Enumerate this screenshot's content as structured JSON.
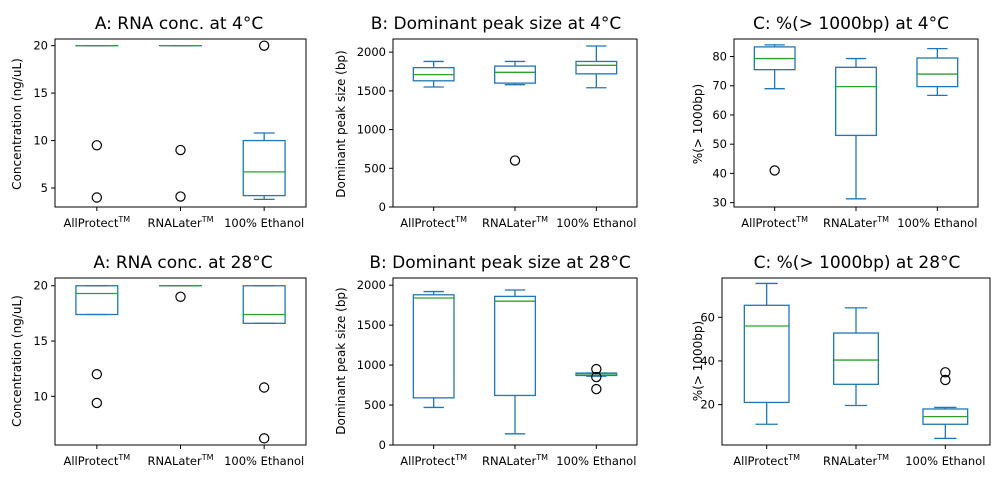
{
  "chart_data": [
    {
      "type": "box",
      "title": "A: RNA conc. at 4°C",
      "ylabel": "Concentration (ng/uL)",
      "ylim": [
        3.0,
        20.7
      ],
      "yticks": [
        5,
        10,
        15,
        20
      ],
      "categories": [
        "AllProtect",
        "RNALater",
        "100% Ethanol"
      ],
      "boxes": [
        {
          "q1": 20.0,
          "median": 20.0,
          "q3": 20.0,
          "whislo": 20.0,
          "whishi": 20.0,
          "fliers": [
            9.5,
            4.0
          ]
        },
        {
          "q1": 20.0,
          "median": 20.0,
          "q3": 20.0,
          "whislo": 20.0,
          "whishi": 20.0,
          "fliers": [
            9.0,
            4.1
          ]
        },
        {
          "q1": 4.2,
          "median": 6.7,
          "q3": 10.0,
          "whislo": 3.8,
          "whishi": 10.8,
          "fliers": [
            20.0
          ]
        }
      ]
    },
    {
      "type": "box",
      "title": "B: Dominant peak size at 4°C",
      "ylabel": "Dominant peak size (bp)",
      "ylim": [
        0,
        2170
      ],
      "yticks": [
        0,
        500,
        1000,
        1500,
        2000
      ],
      "categories": [
        "AllProtect",
        "RNALater",
        "100% Ethanol"
      ],
      "boxes": [
        {
          "q1": 1630,
          "median": 1710,
          "q3": 1800,
          "whislo": 1550,
          "whishi": 1880,
          "fliers": []
        },
        {
          "q1": 1600,
          "median": 1740,
          "q3": 1820,
          "whislo": 1580,
          "whishi": 1880,
          "fliers": [
            600
          ]
        },
        {
          "q1": 1720,
          "median": 1830,
          "q3": 1880,
          "whislo": 1540,
          "whishi": 2080,
          "fliers": []
        }
      ]
    },
    {
      "type": "box",
      "title": "C: %(> 1000bp) at 4°C",
      "ylabel": "%(> 1000bp)",
      "ylim": [
        28.5,
        86
      ],
      "yticks": [
        30,
        40,
        50,
        60,
        70,
        80
      ],
      "categories": [
        "AllProtect",
        "RNALater",
        "100% Ethanol"
      ],
      "boxes": [
        {
          "q1": 75.5,
          "median": 79.3,
          "q3": 83.3,
          "whislo": 69.0,
          "whishi": 84.0,
          "fliers": [
            41.0
          ]
        },
        {
          "q1": 53.0,
          "median": 69.7,
          "q3": 76.3,
          "whislo": 31.3,
          "whishi": 79.3,
          "fliers": []
        },
        {
          "q1": 69.7,
          "median": 74.0,
          "q3": 79.5,
          "whislo": 66.7,
          "whishi": 82.7,
          "fliers": []
        }
      ]
    },
    {
      "type": "box",
      "title": "A: RNA conc. at 28°C",
      "ylabel": "Concentration (ng/uL)",
      "ylim": [
        5.6,
        20.7
      ],
      "yticks": [
        10,
        15,
        20
      ],
      "categories": [
        "AllProtect",
        "RNALater",
        "100% Ethanol"
      ],
      "boxes": [
        {
          "q1": 17.4,
          "median": 19.3,
          "q3": 20.0,
          "whislo": 17.4,
          "whishi": 20.0,
          "fliers": [
            12.0,
            9.4
          ]
        },
        {
          "q1": 20.0,
          "median": 20.0,
          "q3": 20.0,
          "whislo": 20.0,
          "whishi": 20.0,
          "fliers": [
            19.0
          ]
        },
        {
          "q1": 16.6,
          "median": 17.4,
          "q3": 20.0,
          "whislo": 16.6,
          "whishi": 20.0,
          "fliers": [
            10.8,
            6.2
          ]
        }
      ]
    },
    {
      "type": "box",
      "title": "B: Dominant peak size at 28°C",
      "ylabel": "Dominant peak size (bp)",
      "ylim": [
        0,
        2090
      ],
      "yticks": [
        0,
        500,
        1000,
        1500,
        2000
      ],
      "categories": [
        "AllProtect",
        "RNALater",
        "100% Ethanol"
      ],
      "boxes": [
        {
          "q1": 590,
          "median": 1840,
          "q3": 1880,
          "whislo": 470,
          "whishi": 1920,
          "fliers": []
        },
        {
          "q1": 620,
          "median": 1800,
          "q3": 1860,
          "whislo": 140,
          "whishi": 1940,
          "fliers": []
        },
        {
          "q1": 870,
          "median": 890,
          "q3": 900,
          "whislo": 860,
          "whishi": 900,
          "fliers": [
            950,
            850,
            700
          ]
        }
      ]
    },
    {
      "type": "box",
      "title": "C: %(> 1000bp) at 28°C",
      "ylabel": "%(> 1000bp)",
      "ylim": [
        1.5,
        78
      ],
      "yticks": [
        20,
        40,
        60
      ],
      "categories": [
        "AllProtect",
        "RNALater",
        "100% Ethanol"
      ],
      "boxes": [
        {
          "q1": 21.0,
          "median": 56.0,
          "q3": 65.5,
          "whislo": 11.0,
          "whishi": 75.5,
          "fliers": []
        },
        {
          "q1": 29.3,
          "median": 40.4,
          "q3": 52.8,
          "whislo": 19.6,
          "whishi": 64.3,
          "fliers": []
        },
        {
          "q1": 11.0,
          "median": 14.5,
          "q3": 18.0,
          "whislo": 4.5,
          "whishi": 18.7,
          "fliers": [
            34.8,
            31.3
          ]
        }
      ]
    }
  ],
  "style": {
    "box_color": "#1f77b4",
    "median_color": "#2ca02c",
    "axis_color": "#000000"
  }
}
